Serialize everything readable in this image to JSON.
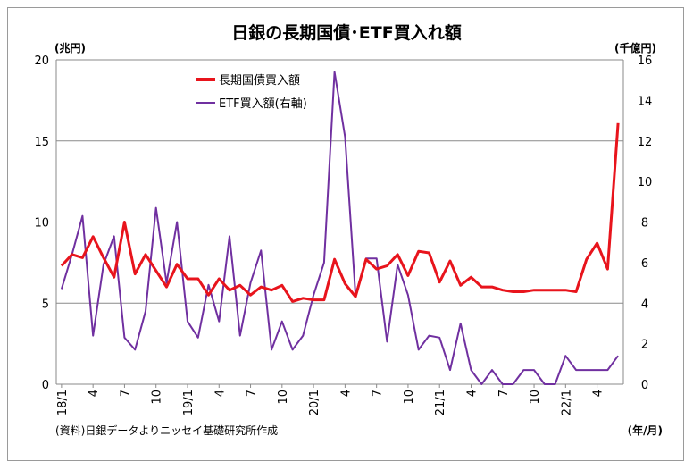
{
  "chart_data": {
    "type": "line",
    "title": "日銀の長期国債･ETF買入れ額",
    "y_left_unit": "(兆円)",
    "y_right_unit": "(千億円)",
    "x_unit": "(年/月)",
    "source": "(資料)日銀データよりニッセイ基礎研究所作成",
    "y_left_range": [
      0,
      20
    ],
    "y_left_ticks": [
      "0",
      "5",
      "10",
      "15",
      "20"
    ],
    "y_right_range": [
      0,
      16
    ],
    "y_right_ticks": [
      "0",
      "2",
      "4",
      "6",
      "8",
      "10",
      "12",
      "14",
      "16"
    ],
    "x_tick_labels": [
      "18/1",
      "4",
      "7",
      "10",
      "19/1",
      "4",
      "7",
      "10",
      "20/1",
      "4",
      "7",
      "10",
      "21/1",
      "4",
      "7",
      "10",
      "22/1",
      "4"
    ],
    "grid": "horizontal",
    "legend_position": "top-left",
    "series": [
      {
        "name": "長期国債買入額",
        "axis": "left",
        "color": "#e8141c",
        "values": [
          7.3,
          8.0,
          7.8,
          9.1,
          7.8,
          6.6,
          10.0,
          6.8,
          8.0,
          7.0,
          6.0,
          7.4,
          6.5,
          6.5,
          5.5,
          6.5,
          5.8,
          6.1,
          5.5,
          6.0,
          5.8,
          6.1,
          5.1,
          5.3,
          5.2,
          5.2,
          7.7,
          6.2,
          5.4,
          7.7,
          7.1,
          7.3,
          8.0,
          6.7,
          8.2,
          8.1,
          6.3,
          7.6,
          6.1,
          6.6,
          6.0,
          6.0,
          5.8,
          5.7,
          5.7,
          5.8,
          5.8,
          5.8,
          5.8,
          5.7,
          7.7,
          8.7,
          7.1,
          16.1
        ]
      },
      {
        "name": "ETF買入額(右軸)",
        "axis": "right",
        "color": "#7030a0",
        "values": [
          4.7,
          6.4,
          8.3,
          2.4,
          5.9,
          7.3,
          2.3,
          1.7,
          3.6,
          8.7,
          5.0,
          8.0,
          3.1,
          2.3,
          4.9,
          3.1,
          7.3,
          2.4,
          5.0,
          6.6,
          1.7,
          3.1,
          1.7,
          2.4,
          4.4,
          6.0,
          15.4,
          12.2,
          4.4,
          6.2,
          6.2,
          2.1,
          5.9,
          4.4,
          1.7,
          2.4,
          2.3,
          0.7,
          3.0,
          0.7,
          0.0,
          0.7,
          0.0,
          0.0,
          0.7,
          0.7,
          0.0,
          0.0,
          1.4,
          0.7,
          0.7,
          0.7,
          0.7,
          1.4
        ]
      }
    ]
  }
}
